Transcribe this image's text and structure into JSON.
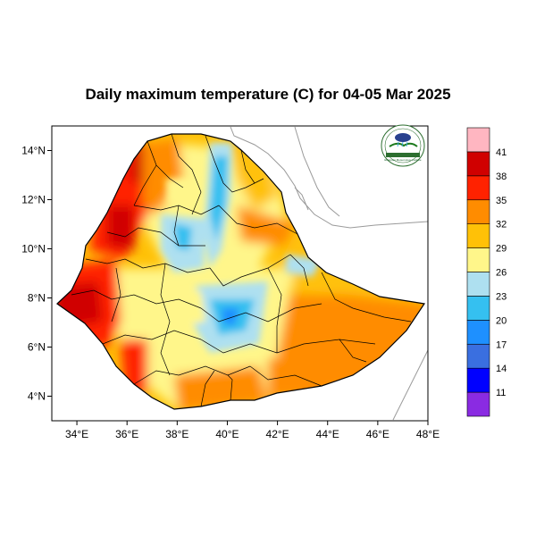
{
  "title": "Daily maximum temperature (C) for 04-05 Mar 2025",
  "map": {
    "lon_range": [
      33,
      48
    ],
    "lat_range": [
      3,
      15
    ],
    "x_ticks": [
      {
        "lon": 34,
        "label": "34°E"
      },
      {
        "lon": 36,
        "label": "36°E"
      },
      {
        "lon": 38,
        "label": "38°E"
      },
      {
        "lon": 40,
        "label": "40°E"
      },
      {
        "lon": 42,
        "label": "42°E"
      },
      {
        "lon": 44,
        "label": "44°E"
      },
      {
        "lon": 46,
        "label": "46°E"
      },
      {
        "lon": 48,
        "label": "48°E"
      }
    ],
    "y_ticks": [
      {
        "lat": 14,
        "label": "14°N"
      },
      {
        "lat": 12,
        "label": "12°N"
      },
      {
        "lat": 10,
        "label": "10°N"
      },
      {
        "lat": 8,
        "label": "8°N"
      },
      {
        "lat": 6,
        "label": "6°N"
      },
      {
        "lat": 4,
        "label": "4°N"
      }
    ]
  },
  "colorbar": {
    "colors": [
      "#8a2be2",
      "#0000ff",
      "#3a6fe0",
      "#1e90ff",
      "#35c0f0",
      "#aee0f0",
      "#fff68a",
      "#ffc107",
      "#ff8c00",
      "#ff2200",
      "#d00000",
      "#ffb6c1"
    ],
    "labels": [
      "11",
      "14",
      "17",
      "20",
      "23",
      "26",
      "29",
      "32",
      "35",
      "38",
      "41"
    ]
  },
  "logo": {
    "text": "Ethiopian Meteorology Institute"
  }
}
